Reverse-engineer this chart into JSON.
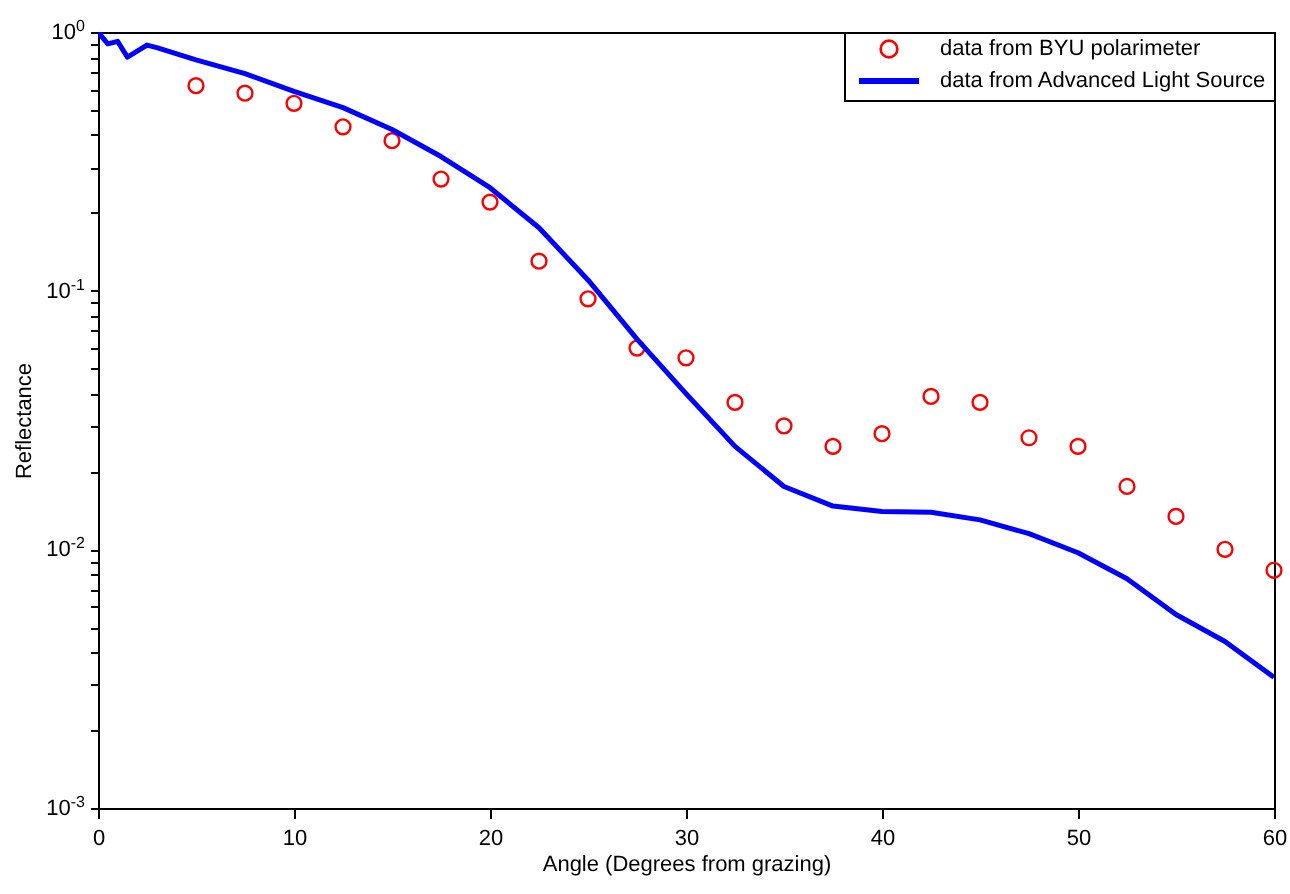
{
  "chart_data": {
    "type": "line",
    "xlabel": "Angle (Degrees from grazing)",
    "ylabel": "Reflectance",
    "log": "y",
    "grid": false,
    "legend": "top right",
    "xlim": [
      0,
      60
    ],
    "xticks": [
      0,
      10,
      20,
      30,
      40,
      50,
      60
    ],
    "ylim": [
      0.001,
      1
    ],
    "yticks": [
      {
        "value": 0.001,
        "label": "10$^{-3}$"
      },
      {
        "value": 0.002,
        "label": null
      },
      {
        "value": 0.003,
        "label": null
      },
      {
        "value": 0.004,
        "label": null
      },
      {
        "value": 0.005,
        "label": null
      },
      {
        "value": 0.006,
        "label": null
      },
      {
        "value": 0.007,
        "label": null
      },
      {
        "value": 0.008,
        "label": null
      },
      {
        "value": 0.009,
        "label": null
      },
      {
        "value": 0.01,
        "label": "10$^{-2}$"
      },
      {
        "value": 0.02,
        "label": null
      },
      {
        "value": 0.03,
        "label": null
      },
      {
        "value": 0.04,
        "label": null
      },
      {
        "value": 0.05,
        "label": null
      },
      {
        "value": 0.06,
        "label": null
      },
      {
        "value": 0.07,
        "label": null
      },
      {
        "value": 0.08,
        "label": null
      },
      {
        "value": 0.09,
        "label": null
      },
      {
        "value": 0.1,
        "label": "10$^{-1}$"
      },
      {
        "value": 0.2,
        "label": null
      },
      {
        "value": 0.3,
        "label": null
      },
      {
        "value": 0.4,
        "label": null
      },
      {
        "value": 0.5,
        "label": null
      },
      {
        "value": 0.6,
        "label": null
      },
      {
        "value": 0.7,
        "label": null
      },
      {
        "value": 0.8,
        "label": null
      },
      {
        "value": 0.9,
        "label": null
      },
      {
        "value": 1,
        "label": "10$^{0}$"
      }
    ],
    "series": [
      {
        "name": "data from BYU polarimeter",
        "type": "scatter",
        "marker": "circle",
        "color": "#ff0000",
        "x": [
          5,
          7.5,
          10,
          12.5,
          15,
          17.5,
          20,
          22.5,
          25,
          27.5,
          30,
          32.5,
          35,
          37.5,
          40,
          42.5,
          45,
          47.5,
          50,
          52.5,
          55,
          57.5,
          60
        ],
        "values": [
          0.62,
          0.58,
          0.53,
          0.43,
          0.38,
          0.27,
          0.22,
          0.13,
          0.093,
          0.06,
          0.055,
          0.037,
          0.03,
          0.025,
          0.028,
          0.039,
          0.037,
          0.027,
          0.025,
          0.0175,
          0.0134,
          0.01,
          0.0083
        ]
      },
      {
        "name": "data from Advanced Light Source",
        "line_style": "solid",
        "color": "#0000ff",
        "x": [
          0,
          0.5,
          1,
          1.5,
          2.5,
          3,
          5,
          7.5,
          10,
          12.5,
          15,
          17.5,
          20,
          22.5,
          25,
          27.5,
          30,
          32.5,
          35,
          37.5,
          40,
          42.5,
          45,
          47.5,
          50,
          52.5,
          55,
          57.5,
          60
        ],
        "values": [
          1.0,
          0.9,
          0.92,
          0.8,
          0.89,
          0.87,
          0.78,
          0.69,
          0.59,
          0.51,
          0.42,
          0.33,
          0.25,
          0.175,
          0.11,
          0.065,
          0.04,
          0.025,
          0.0175,
          0.0147,
          0.014,
          0.0139,
          0.013,
          0.0115,
          0.0097,
          0.0077,
          0.0056,
          0.0044,
          0.0032
        ]
      }
    ]
  }
}
